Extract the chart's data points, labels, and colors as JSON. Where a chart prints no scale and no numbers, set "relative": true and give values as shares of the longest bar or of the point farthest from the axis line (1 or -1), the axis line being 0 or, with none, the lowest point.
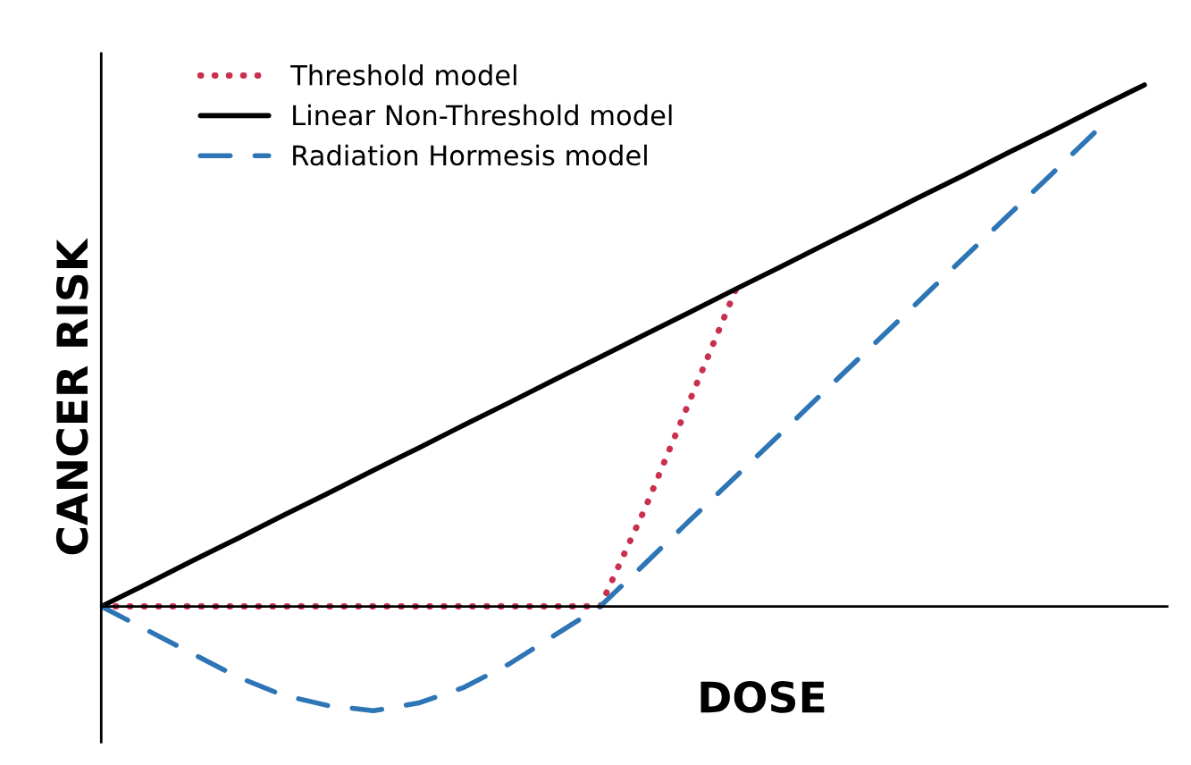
{
  "chart_data": {
    "type": "line",
    "relative": true,
    "xlabel": "DOSE",
    "ylabel": "CANCER RISK",
    "categories": [
      null,
      null,
      null,
      null,
      null,
      null,
      null,
      null,
      null,
      null,
      null,
      null,
      null,
      null,
      null,
      null,
      null,
      null,
      null,
      null,
      null,
      null,
      null,
      null
    ],
    "series": [
      {
        "name": "Threshold model",
        "color": "#c8304e",
        "line_style": "dotted",
        "values": [
          0,
          0,
          0,
          0,
          0,
          0,
          0,
          0,
          0,
          0,
          0,
          0,
          0.19,
          0.4,
          0.61,
          null,
          null,
          null,
          null,
          null,
          null,
          null,
          null,
          null
        ]
      },
      {
        "name": "Linear Non-Threshold model",
        "color": "#000000",
        "line_style": "solid",
        "values": [
          0,
          0.043,
          0.087,
          0.13,
          0.174,
          0.217,
          0.261,
          0.304,
          0.348,
          0.391,
          0.435,
          0.478,
          0.522,
          0.565,
          0.609,
          0.652,
          0.696,
          0.739,
          0.783,
          0.826,
          0.87,
          0.913,
          0.957,
          1
        ]
      },
      {
        "name": "Radiation Hormesis model",
        "color": "#2e75b6",
        "line_style": "dashed",
        "values": [
          0,
          -0.045,
          -0.09,
          -0.135,
          -0.17,
          -0.19,
          -0.2,
          -0.185,
          -0.155,
          -0.11,
          -0.055,
          0,
          0.083,
          0.167,
          0.25,
          0.333,
          0.417,
          0.5,
          0.583,
          0.667,
          0.75,
          0.833,
          0.917,
          null
        ]
      }
    ],
    "legend": "top left",
    "grid": false,
    "marker": "none"
  }
}
